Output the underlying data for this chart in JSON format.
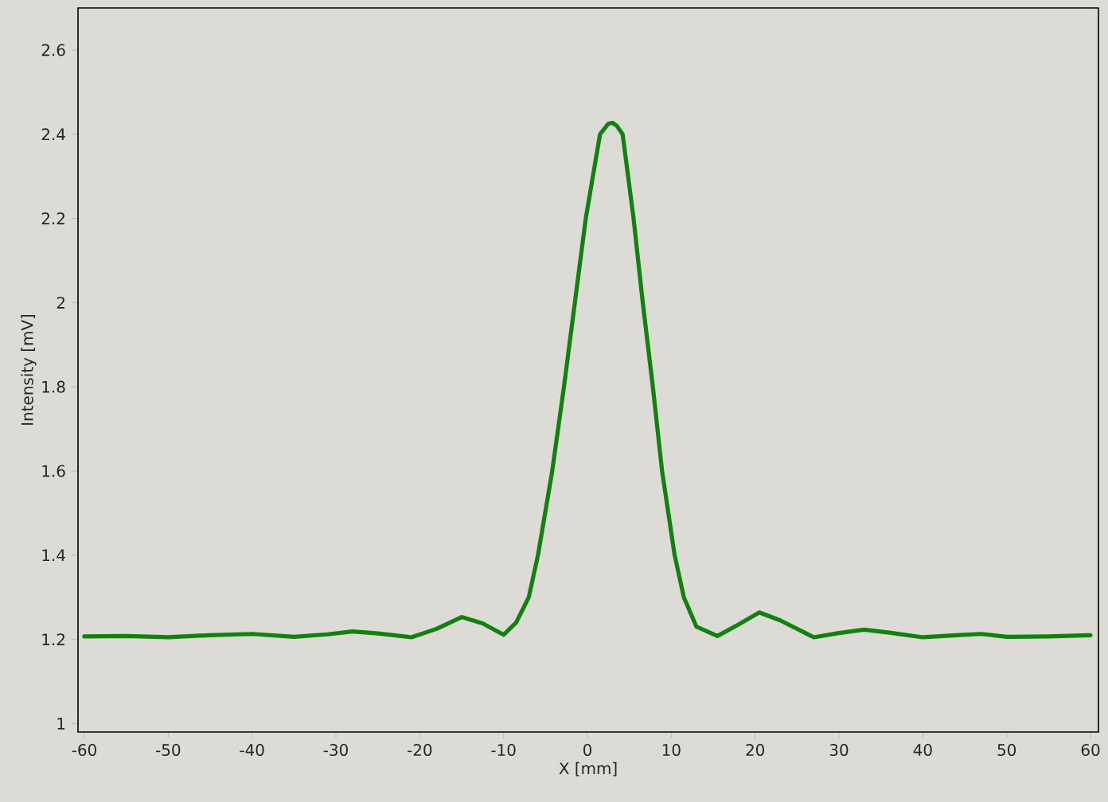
{
  "chart_data": {
    "type": "line",
    "xlabel": "X [mm]",
    "ylabel": "Intensity [mV]",
    "xlim": [
      -60.76,
      60.95
    ],
    "ylim": [
      0.98,
      2.7
    ],
    "xticks": [
      -60,
      -50,
      -40,
      -30,
      -20,
      -10,
      0,
      10,
      20,
      30,
      40,
      50,
      60
    ],
    "yticks": [
      1,
      1.2,
      1.4,
      1.6,
      1.8,
      2,
      2.2,
      2.4,
      2.6
    ],
    "grid": false,
    "marker": "none",
    "line_style": "solid",
    "series": [
      {
        "color": "#12820f",
        "x": [
          -60,
          -55,
          -50,
          -45,
          -40,
          -35,
          -31,
          -28,
          -25,
          -21,
          -18,
          -15,
          -12.5,
          -10,
          -8.5,
          -7,
          -5.9,
          -4.2,
          -2.8,
          -1.5,
          -0.2,
          1.5,
          2.5,
          3,
          3.5,
          4.2,
          5.5,
          6.6,
          7.8,
          8.9,
          10.4,
          11.5,
          13,
          15.5,
          18,
          20.5,
          23,
          27,
          30,
          33,
          36,
          40,
          44,
          47,
          50,
          55,
          60
        ],
        "values": [
          1.207,
          1.208,
          1.205,
          1.21,
          1.213,
          1.206,
          1.212,
          1.219,
          1.214,
          1.205,
          1.225,
          1.253,
          1.238,
          1.211,
          1.24,
          1.3,
          1.4,
          1.6,
          1.8,
          2.0,
          2.2,
          2.4,
          2.425,
          2.427,
          2.42,
          2.4,
          2.2,
          2.0,
          1.8,
          1.6,
          1.4,
          1.3,
          1.23,
          1.208,
          1.235,
          1.264,
          1.245,
          1.205,
          1.215,
          1.223,
          1.216,
          1.205,
          1.21,
          1.213,
          1.206,
          1.207,
          1.21
        ]
      }
    ]
  }
}
